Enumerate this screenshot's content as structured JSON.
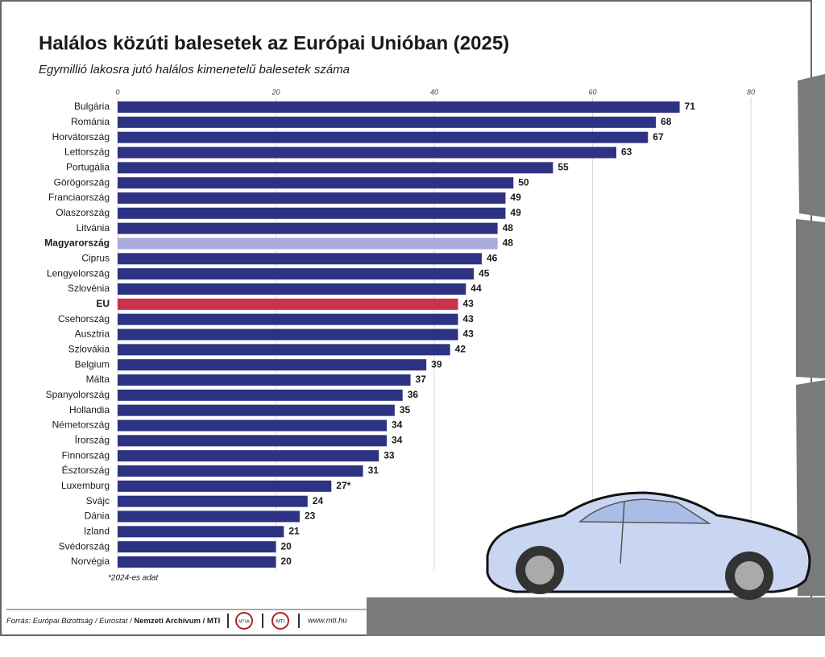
{
  "chart_data": {
    "type": "bar",
    "orientation": "horizontal",
    "title": "Halálos közúti balesetek az Európai Unióban (2025)",
    "subtitle": "Egymillió lakosra jutó halálos kimenetelű balesetek száma",
    "categories": [
      "Bulgária",
      "Románia",
      "Horvátország",
      "Lettország",
      "Portugália",
      "Görögország",
      "Franciaország",
      "Olaszország",
      "Litvánia",
      "Magyarország",
      "Ciprus",
      "Lengyelország",
      "Szlovénia",
      "EU",
      "Csehország",
      "Ausztria",
      "Szlovákia",
      "Belgium",
      "Málta",
      "Spanyolország",
      "Hollandia",
      "Németország",
      "Írország",
      "Finnország",
      "Észtország",
      "Luxemburg",
      "Svájc",
      "Dánia",
      "Izland",
      "Svédország",
      "Norvégia"
    ],
    "values": [
      71,
      68,
      67,
      63,
      55,
      50,
      49,
      49,
      48,
      48,
      46,
      45,
      44,
      43,
      43,
      43,
      42,
      39,
      37,
      36,
      35,
      34,
      34,
      33,
      31,
      27,
      24,
      23,
      21,
      20,
      20
    ],
    "value_labels": [
      "71",
      "68",
      "67",
      "63",
      "55",
      "50",
      "49",
      "49",
      "48",
      "48",
      "46",
      "45",
      "44",
      "43",
      "43",
      "43",
      "42",
      "39",
      "37",
      "36",
      "35",
      "34",
      "34",
      "33",
      "31",
      "27*",
      "24",
      "23",
      "21",
      "20",
      "20"
    ],
    "color": "#2e3282",
    "colors": [
      "#2e3282",
      "#2e3282",
      "#2e3282",
      "#2e3282",
      "#2e3282",
      "#2e3282",
      "#2e3282",
      "#2e3282",
      "#2e3282",
      "#aaaadf",
      "#2e3282",
      "#2e3282",
      "#2e3282",
      "#c8334b",
      "#2e3282",
      "#2e3282",
      "#2e3282",
      "#2e3282",
      "#2e3282",
      "#2e3282",
      "#2e3282",
      "#2e3282",
      "#2e3282",
      "#2e3282",
      "#2e3282",
      "#2e3282",
      "#2e3282",
      "#2e3282",
      "#2e3282",
      "#2e3282",
      "#2e3282"
    ],
    "xlim": [
      0,
      80
    ],
    "xticks": [
      0,
      20,
      40,
      60,
      80
    ],
    "grid": true,
    "footnote": "*2024-es adat"
  },
  "footer": {
    "source_prefix": "Forrás: Európai Bizottság / Eurostat / ",
    "source_bold": "Nemzeti Archívum / MTI",
    "logo1": "MTVA",
    "logo2": "MTI",
    "url": "www.mti.hu"
  }
}
